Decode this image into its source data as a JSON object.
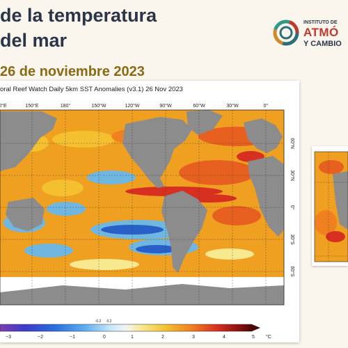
{
  "slide": {
    "title_line1": "de la temperatura",
    "title_line2": "del mar",
    "date": "26 de noviembre 2023"
  },
  "logo": {
    "line1": "INSTITUTO DE",
    "line2": "ATMÓ",
    "line3": "Y CAMBIO",
    "ring_colors": [
      "#2b6f7a",
      "#d08a2c",
      "#2f9a8a",
      "#c0392b"
    ]
  },
  "map": {
    "title": "oral Reef Watch Daily 5km SST Anomalies  (v3.1)   26 Nov 2023",
    "lon_labels": [
      "0°E",
      "150°E",
      "180°",
      "150°W",
      "120°W",
      "90°W",
      "60°W",
      "30°W",
      "0°"
    ],
    "lat_labels": [
      "60°N",
      "30°N",
      "0°",
      "30°S",
      "60°S"
    ],
    "colorbar": {
      "ticks": [
        "−3",
        "−2",
        "−1",
        "0",
        "1",
        "2",
        "3",
        "4",
        "5"
      ],
      "small_ticks": [
        "-0.2",
        "0.2"
      ],
      "unit": "°C",
      "min": -5,
      "max": 5
    },
    "colors": {
      "land": "#8c8c8c",
      "ice": "#ffffff",
      "warm": "#f0a020",
      "hot": "#d83020",
      "cool": "#6fb6e0",
      "cold": "#2860c8"
    }
  }
}
